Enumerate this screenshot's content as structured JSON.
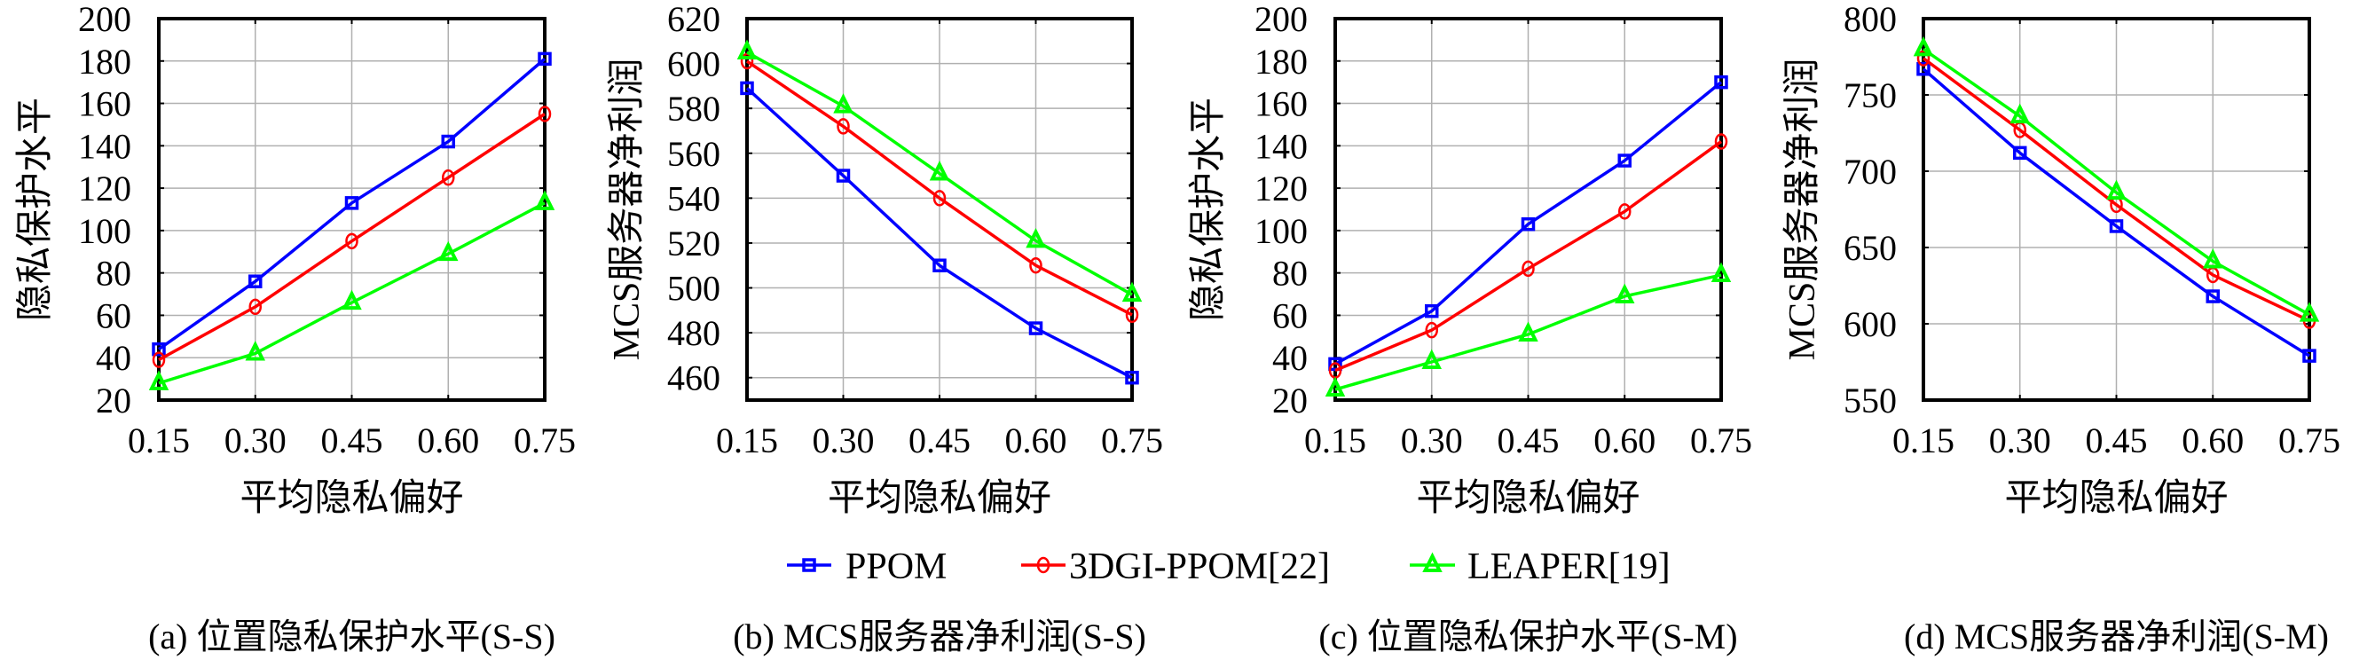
{
  "legend": {
    "entries": [
      {
        "label": "PPOM",
        "color": "#0000ff",
        "marker": "square"
      },
      {
        "label": "3DGI-PPOM[22]",
        "color": "#ff0000",
        "marker": "circle"
      },
      {
        "label": "LEAPER[19]",
        "color": "#00ff00",
        "marker": "triangle"
      }
    ]
  },
  "colors": {
    "axis": "#000000",
    "grid": "#b0b0b0"
  },
  "chart_data": [
    {
      "type": "line",
      "caption": "(a) 位置隐私保护水平(S-S)",
      "xlabel": "平均隐私偏好",
      "ylabel": "隐私保护水平",
      "x": [
        0.15,
        0.3,
        0.45,
        0.6,
        0.75
      ],
      "xtick_labels": [
        "0.15",
        "0.30",
        "0.45",
        "0.60",
        "0.75"
      ],
      "xlim": [
        0.15,
        0.75
      ],
      "ylim": [
        20,
        200
      ],
      "yticks": [
        20,
        40,
        60,
        80,
        100,
        120,
        140,
        160,
        180,
        200
      ],
      "ytick_labels": [
        "20",
        "40",
        "60",
        "80",
        "100",
        "120",
        "140",
        "160",
        "180",
        "200"
      ],
      "grid": true,
      "series": [
        {
          "name": "PPOM",
          "values": [
            44,
            76,
            113,
            142,
            181
          ]
        },
        {
          "name": "3DGI-PPOM[22]",
          "values": [
            39,
            64,
            95,
            125,
            155
          ]
        },
        {
          "name": "LEAPER[19]",
          "values": [
            28,
            42,
            66,
            89,
            113
          ]
        }
      ]
    },
    {
      "type": "line",
      "caption": "(b) MCS服务器净利润(S-S)",
      "xlabel": "平均隐私偏好",
      "ylabel": "MCS服务器净利润",
      "x": [
        0.15,
        0.3,
        0.45,
        0.6,
        0.75
      ],
      "xtick_labels": [
        "0.15",
        "0.30",
        "0.45",
        "0.60",
        "0.75"
      ],
      "xlim": [
        0.15,
        0.75
      ],
      "ylim": [
        450,
        620
      ],
      "yticks": [
        460,
        480,
        500,
        520,
        540,
        560,
        580,
        600,
        620
      ],
      "ytick_labels": [
        "460",
        "480",
        "500",
        "520",
        "540",
        "560",
        "580",
        "600",
        "620"
      ],
      "grid": true,
      "series": [
        {
          "name": "PPOM",
          "values": [
            589,
            550,
            510,
            482,
            460
          ]
        },
        {
          "name": "3DGI-PPOM[22]",
          "values": [
            601,
            572,
            540,
            510,
            488
          ]
        },
        {
          "name": "LEAPER[19]",
          "values": [
            605,
            581,
            551,
            521,
            497
          ]
        }
      ]
    },
    {
      "type": "line",
      "caption": "(c) 位置隐私保护水平(S-M)",
      "xlabel": "平均隐私偏好",
      "ylabel": "隐私保护水平",
      "x": [
        0.15,
        0.3,
        0.45,
        0.6,
        0.75
      ],
      "xtick_labels": [
        "0.15",
        "0.30",
        "0.45",
        "0.60",
        "0.75"
      ],
      "xlim": [
        0.15,
        0.75
      ],
      "ylim": [
        20,
        200
      ],
      "yticks": [
        20,
        40,
        60,
        80,
        100,
        120,
        140,
        160,
        180,
        200
      ],
      "ytick_labels": [
        "20",
        "40",
        "60",
        "80",
        "100",
        "120",
        "140",
        "160",
        "180",
        "200"
      ],
      "grid": true,
      "series": [
        {
          "name": "PPOM",
          "values": [
            37,
            62,
            103,
            133,
            170
          ]
        },
        {
          "name": "3DGI-PPOM[22]",
          "values": [
            34,
            53,
            82,
            109,
            142
          ]
        },
        {
          "name": "LEAPER[19]",
          "values": [
            25,
            38,
            51,
            69,
            79
          ]
        }
      ]
    },
    {
      "type": "line",
      "caption": "(d) MCS服务器净利润(S-M)",
      "xlabel": "平均隐私偏好",
      "ylabel": "MCS服务器净利润",
      "x": [
        0.15,
        0.3,
        0.45,
        0.6,
        0.75
      ],
      "xtick_labels": [
        "0.15",
        "0.30",
        "0.45",
        "0.60",
        "0.75"
      ],
      "xlim": [
        0.15,
        0.75
      ],
      "ylim": [
        550,
        800
      ],
      "yticks": [
        550,
        600,
        650,
        700,
        750,
        800
      ],
      "ytick_labels": [
        "550",
        "600",
        "650",
        "700",
        "750",
        "800"
      ],
      "grid": true,
      "series": [
        {
          "name": "PPOM",
          "values": [
            767,
            712,
            664,
            618,
            579
          ]
        },
        {
          "name": "3DGI-PPOM[22]",
          "values": [
            774,
            727,
            678,
            632,
            602
          ]
        },
        {
          "name": "LEAPER[19]",
          "values": [
            780,
            736,
            686,
            641,
            606
          ]
        }
      ]
    }
  ]
}
